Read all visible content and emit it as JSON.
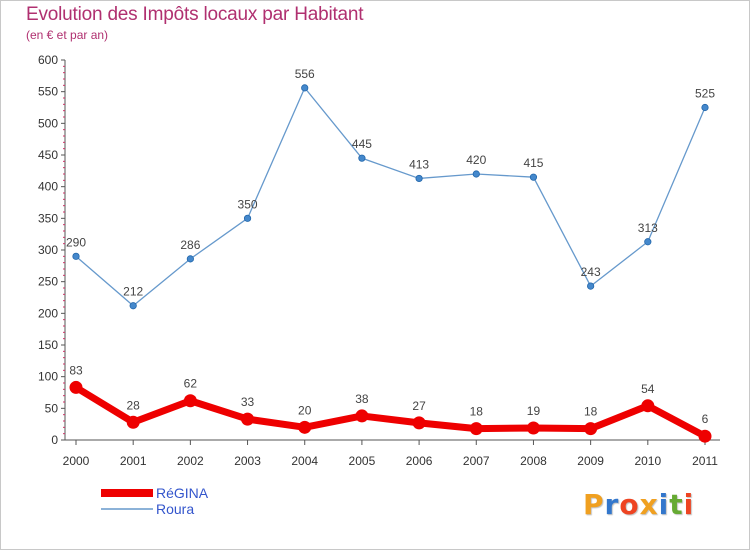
{
  "chart_data": {
    "type": "line",
    "title": "Evolution des Impôts locaux par Habitant",
    "subtitle": "(en € et par an)",
    "xlabel": "",
    "ylabel": "",
    "categories": [
      "2000",
      "2001",
      "2002",
      "2003",
      "2004",
      "2005",
      "2006",
      "2007",
      "2008",
      "2009",
      "2010",
      "2011"
    ],
    "ylim": [
      0,
      600
    ],
    "yticks": [
      0,
      50,
      100,
      150,
      200,
      250,
      300,
      350,
      400,
      450,
      500,
      550,
      600
    ],
    "grid": false,
    "legend_position": "bottom-left",
    "series": [
      {
        "name": "RéGINA",
        "color": "#ee0000",
        "values": [
          83,
          28,
          62,
          33,
          20,
          38,
          27,
          18,
          19,
          18,
          54,
          6
        ]
      },
      {
        "name": "Roura",
        "color": "#6699cc",
        "values": [
          290,
          212,
          286,
          350,
          556,
          445,
          413,
          420,
          415,
          243,
          313,
          525
        ]
      }
    ]
  },
  "logo": {
    "text": "Proxiti",
    "colors": [
      "#f0a020",
      "#3377cc",
      "#ee4422",
      "#f0a020",
      "#3377cc",
      "#66aa33",
      "#ee4422"
    ]
  }
}
